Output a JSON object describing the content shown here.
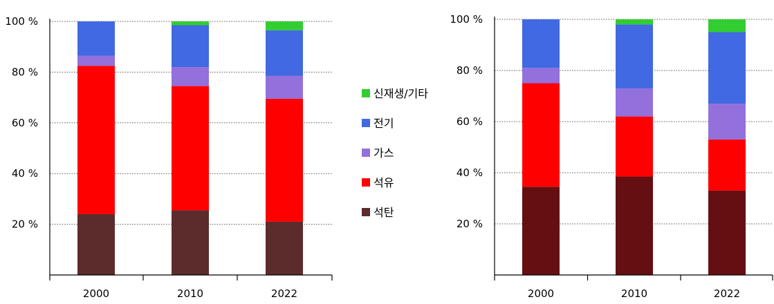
{
  "chart_data": [
    {
      "type": "bar",
      "stacked": true,
      "categories": [
        "2000",
        "2010",
        "2022"
      ],
      "ylim": [
        0,
        100
      ],
      "yticks": [
        "20 %",
        "40 %",
        "60 %",
        "80 %",
        "100 %"
      ],
      "grid": true,
      "series": [
        {
          "name": "석탄",
          "color": "#5c2b2b",
          "values": [
            24,
            25.5,
            21
          ]
        },
        {
          "name": "석유",
          "color": "#ff0000",
          "values": [
            58.5,
            49,
            48.5
          ]
        },
        {
          "name": "가스",
          "color": "#9370db",
          "values": [
            4,
            7.5,
            9
          ]
        },
        {
          "name": "전기",
          "color": "#4169e1",
          "values": [
            13.5,
            16.5,
            18
          ]
        },
        {
          "name": "신재생/기타",
          "color": "#32cd32",
          "values": [
            0,
            1.5,
            3.5
          ]
        }
      ]
    },
    {
      "type": "bar",
      "stacked": true,
      "categories": [
        "2000",
        "2010",
        "2022"
      ],
      "ylim": [
        0,
        100
      ],
      "yticks": [
        "20 %",
        "40 %",
        "60 %",
        "80 %",
        "100 %"
      ],
      "grid": true,
      "series": [
        {
          "name": "석탄",
          "color": "#650f12",
          "values": [
            34.5,
            38.5,
            33
          ]
        },
        {
          "name": "석유",
          "color": "#ff0000",
          "values": [
            40.5,
            23.5,
            20
          ]
        },
        {
          "name": "가스",
          "color": "#9370db",
          "values": [
            6,
            11,
            14
          ]
        },
        {
          "name": "전기",
          "color": "#4169e1",
          "values": [
            19,
            25,
            28
          ]
        },
        {
          "name": "신재생/기타",
          "color": "#32cd32",
          "values": [
            0,
            2,
            5
          ]
        }
      ]
    }
  ],
  "legend": {
    "placement": "between-charts",
    "order": [
      "신재생/기타",
      "전기",
      "가스",
      "석유",
      "석탄"
    ]
  }
}
